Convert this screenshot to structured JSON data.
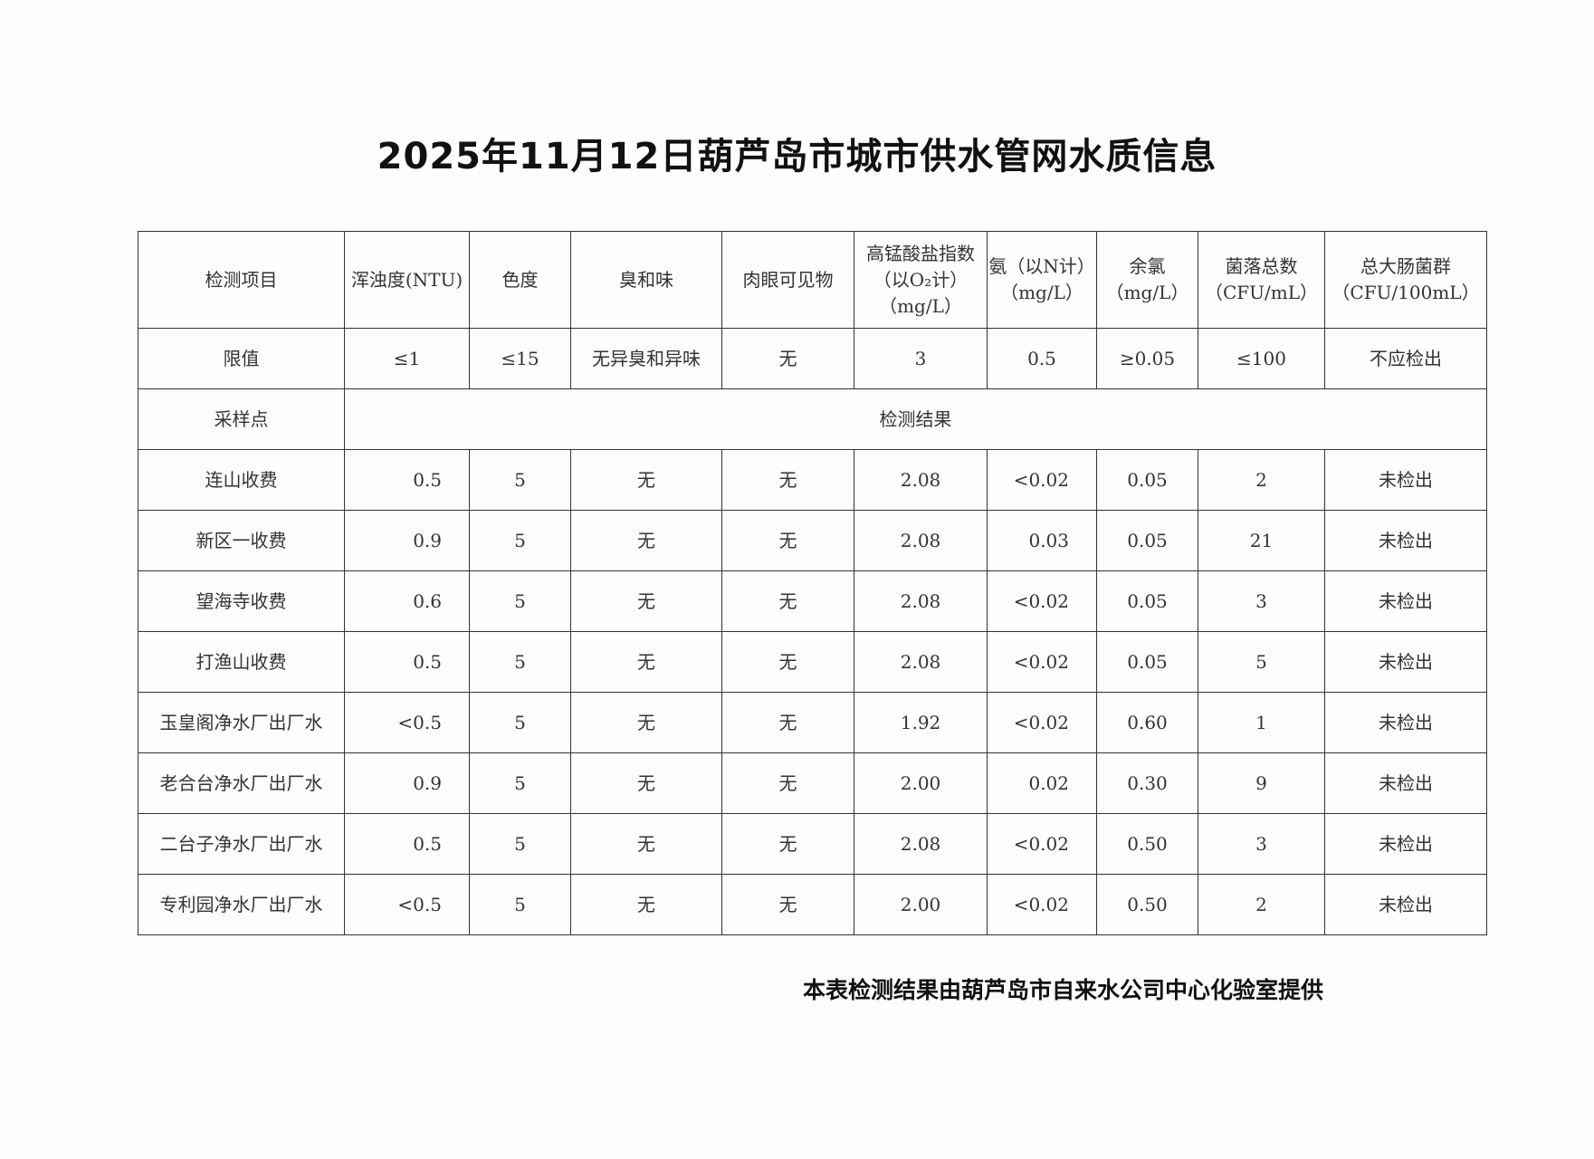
{
  "title": "2025年11月12日葫芦岛市城市供水管网水质信息",
  "headers": [
    "检测项目",
    "浑浊度(NTU)",
    "色度",
    "臭和味",
    "肉眼可见物",
    "高锰酸盐指数（以O₂计）（mg/L）",
    "氨（以N计）（mg/L）",
    "余氯（mg/L）",
    "菌落总数（CFU/mL）",
    "总大肠菌群（CFU/100mL）"
  ],
  "limits": [
    "限值",
    "≤1",
    "≤15",
    "无异臭和异味",
    "无",
    "3",
    "0.5",
    "≥0.05",
    "≤100",
    "不应检出"
  ],
  "sampling_label": "采样点",
  "results_label": "检测结果",
  "rows": [
    [
      "连山收费",
      "0.5",
      "5",
      "无",
      "无",
      "2.08",
      "<0.02",
      "0.05",
      "2",
      "未检出"
    ],
    [
      "新区一收费",
      "0.9",
      "5",
      "无",
      "无",
      "2.08",
      "0.03",
      "0.05",
      "21",
      "未检出"
    ],
    [
      "望海寺收费",
      "0.6",
      "5",
      "无",
      "无",
      "2.08",
      "<0.02",
      "0.05",
      "3",
      "未检出"
    ],
    [
      "打渔山收费",
      "0.5",
      "5",
      "无",
      "无",
      "2.08",
      "<0.02",
      "0.05",
      "5",
      "未检出"
    ],
    [
      "玉皇阁净水厂出厂水",
      "<0.5",
      "5",
      "无",
      "无",
      "1.92",
      "<0.02",
      "0.60",
      "1",
      "未检出"
    ],
    [
      "老合台净水厂出厂水",
      "0.9",
      "5",
      "无",
      "无",
      "2.00",
      "0.02",
      "0.30",
      "9",
      "未检出"
    ],
    [
      "二台子净水厂出厂水",
      "0.5",
      "5",
      "无",
      "无",
      "2.08",
      "<0.02",
      "0.50",
      "3",
      "未检出"
    ],
    [
      "专利园净水厂出厂水",
      "<0.5",
      "5",
      "无",
      "无",
      "2.00",
      "<0.02",
      "0.50",
      "2",
      "未检出"
    ]
  ],
  "footer": "本表检测结果由葫芦岛市自来水公司中心化验室提供"
}
